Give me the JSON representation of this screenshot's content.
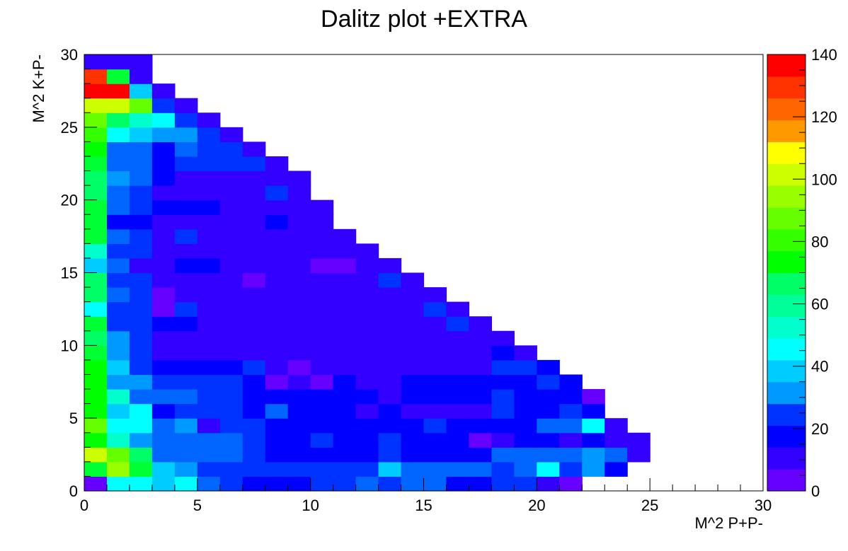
{
  "chart_data": {
    "type": "heatmap",
    "title": "Dalitz plot +EXTRA",
    "xlabel": "M^2 P+P-",
    "ylabel": "M^2 K+P-",
    "xlim": [
      0,
      30
    ],
    "ylim": [
      0,
      30
    ],
    "bins_x": 30,
    "bins_y": 30,
    "bin_width": 1,
    "x_ticks": [
      "0",
      "5",
      "10",
      "15",
      "20",
      "25",
      "30"
    ],
    "y_ticks": [
      "0",
      "5",
      "10",
      "15",
      "20",
      "25",
      "30"
    ],
    "z_range": [
      0,
      140
    ],
    "z_ticks": [
      "0",
      "20",
      "40",
      "60",
      "80",
      "100",
      "120",
      "140"
    ],
    "palette_levels": 20,
    "palette": [
      "#6600ff",
      "#3300ff",
      "#0000ff",
      "#0033ff",
      "#0066ff",
      "#0099ff",
      "#00ccff",
      "#00ffff",
      "#00ffcc",
      "#00ff99",
      "#00ff66",
      "#00ff33",
      "#00ff00",
      "#33ff00",
      "#66ff00",
      "#99ff00",
      "#ccff00",
      "#ffff00",
      "#ffcc00",
      "#ff9900",
      "#ff6600",
      "#ff3300",
      "#ff0000"
    ],
    "values_note": "rows listed from y-bin 0 (bottom) upward; each row gives counts for x-bins 0,1,2,...",
    "values": [
      [
        5,
        45,
        45,
        40,
        48,
        30,
        22,
        18,
        18,
        18,
        25,
        25,
        30,
        25,
        30,
        30,
        18,
        18,
        25,
        25,
        12,
        5
      ],
      [
        75,
        100,
        75,
        40,
        35,
        20,
        25,
        20,
        25,
        20,
        20,
        20,
        20,
        40,
        30,
        30,
        30,
        30,
        20,
        30,
        45,
        25,
        35,
        15
      ],
      [
        105,
        90,
        65,
        28,
        28,
        28,
        28,
        20,
        15,
        15,
        15,
        15,
        15,
        20,
        15,
        15,
        15,
        15,
        28,
        28,
        28,
        28,
        35,
        28,
        12
      ],
      [
        80,
        55,
        35,
        28,
        28,
        28,
        28,
        20,
        15,
        15,
        25,
        15,
        15,
        20,
        15,
        15,
        15,
        5,
        10,
        15,
        15,
        10,
        15,
        10,
        10
      ],
      [
        90,
        50,
        50,
        28,
        35,
        10,
        25,
        20,
        15,
        15,
        15,
        15,
        15,
        15,
        15,
        20,
        15,
        15,
        15,
        15,
        28,
        28,
        45,
        12
      ],
      [
        80,
        40,
        50,
        18,
        25,
        25,
        20,
        15,
        30,
        15,
        15,
        15,
        10,
        15,
        10,
        10,
        10,
        10,
        20,
        15,
        15,
        20,
        15
      ],
      [
        80,
        55,
        30,
        30,
        30,
        25,
        25,
        15,
        15,
        15,
        15,
        15,
        15,
        12,
        15,
        15,
        15,
        15,
        20,
        15,
        15,
        15,
        5
      ],
      [
        80,
        35,
        35,
        20,
        20,
        20,
        20,
        15,
        5,
        10,
        5,
        15,
        10,
        10,
        15,
        15,
        15,
        15,
        15,
        15,
        25,
        15
      ],
      [
        80,
        40,
        25,
        15,
        15,
        15,
        15,
        20,
        10,
        5,
        10,
        10,
        10,
        10,
        10,
        10,
        10,
        10,
        20,
        20,
        15
      ],
      [
        75,
        35,
        20,
        12,
        12,
        12,
        12,
        12,
        8,
        8,
        12,
        8,
        8,
        12,
        8,
        12,
        12,
        12,
        15,
        10
      ],
      [
        65,
        35,
        20,
        12,
        12,
        12,
        12,
        12,
        8,
        8,
        8,
        12,
        8,
        12,
        8,
        12,
        12,
        12,
        12
      ],
      [
        70,
        20,
        20,
        15,
        15,
        12,
        12,
        12,
        8,
        12,
        12,
        8,
        12,
        12,
        8,
        12,
        20,
        12
      ],
      [
        50,
        20,
        20,
        5,
        20,
        12,
        12,
        12,
        8,
        8,
        8,
        12,
        12,
        8,
        12,
        20,
        12
      ],
      [
        65,
        30,
        20,
        5,
        12,
        12,
        12,
        12,
        12,
        12,
        12,
        12,
        8,
        12,
        12,
        12
      ],
      [
        65,
        20,
        20,
        12,
        12,
        12,
        12,
        5,
        12,
        12,
        12,
        12,
        12,
        20,
        12
      ],
      [
        40,
        30,
        12,
        12,
        18,
        18,
        12,
        12,
        12,
        12,
        5,
        5,
        12,
        12
      ],
      [
        55,
        25,
        25,
        12,
        12,
        12,
        12,
        12,
        8,
        12,
        12,
        12,
        12
      ],
      [
        70,
        30,
        20,
        12,
        20,
        12,
        12,
        12,
        12,
        12,
        12,
        12
      ],
      [
        75,
        18,
        18,
        12,
        12,
        12,
        12,
        12,
        18,
        12,
        12
      ],
      [
        70,
        30,
        25,
        18,
        18,
        18,
        12,
        12,
        12,
        12,
        12
      ],
      [
        65,
        30,
        25,
        12,
        12,
        12,
        12,
        12,
        20,
        8
      ],
      [
        65,
        35,
        30,
        15,
        12,
        12,
        12,
        12,
        12,
        8
      ],
      [
        75,
        30,
        30,
        15,
        25,
        25,
        20,
        20,
        12
      ],
      [
        80,
        30,
        30,
        18,
        30,
        22,
        20,
        12
      ],
      [
        85,
        45,
        40,
        35,
        35,
        20,
        12
      ],
      [
        90,
        65,
        55,
        50,
        25,
        12
      ],
      [
        105,
        108,
        90,
        20,
        12
      ],
      [
        140,
        140,
        40,
        10
      ],
      [
        135,
        75,
        10
      ],
      [
        8,
        8,
        8
      ]
    ]
  }
}
